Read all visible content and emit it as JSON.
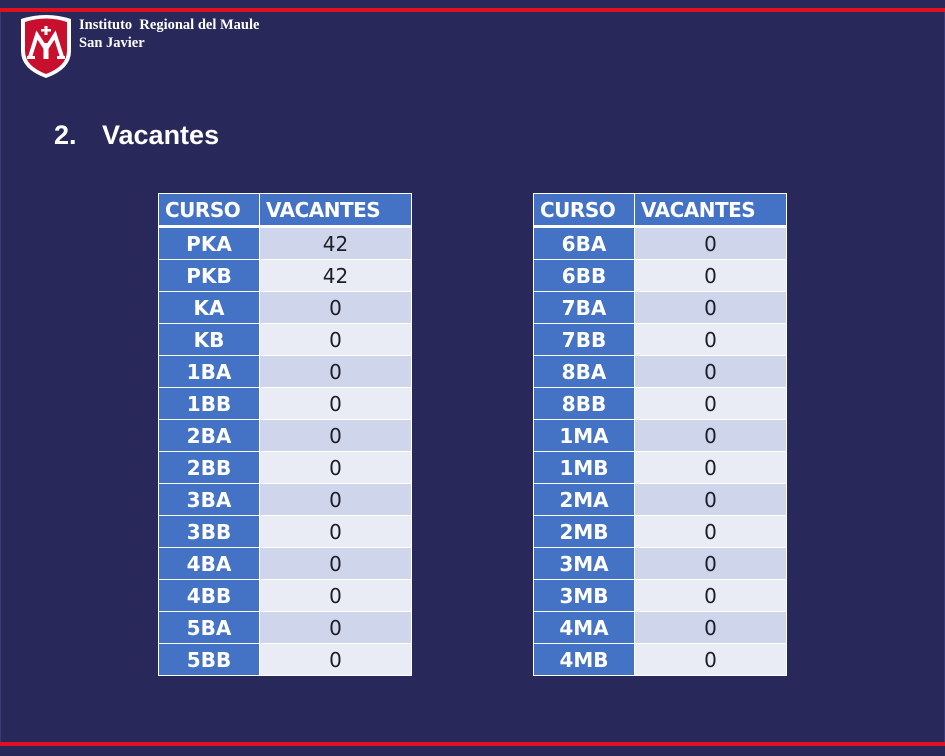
{
  "header": {
    "institution": "Instituto  Regional del Maule",
    "city": "San Javier"
  },
  "section": {
    "number": "2.",
    "title": "Vacantes"
  },
  "colors": {
    "background": "#28285a",
    "accent_red": "#e0101e",
    "header_blue": "#4472c4",
    "row_light": "#e9ebf5",
    "row_dark": "#cfd5ea"
  },
  "tables": [
    {
      "headers": [
        "CURSO",
        "VACANTES"
      ],
      "rows": [
        [
          "PKA",
          "42"
        ],
        [
          "PKB",
          "42"
        ],
        [
          "KA",
          "0"
        ],
        [
          "KB",
          "0"
        ],
        [
          "1BA",
          "0"
        ],
        [
          "1BB",
          "0"
        ],
        [
          "2BA",
          "0"
        ],
        [
          "2BB",
          "0"
        ],
        [
          "3BA",
          "0"
        ],
        [
          "3BB",
          "0"
        ],
        [
          "4BA",
          "0"
        ],
        [
          "4BB",
          "0"
        ],
        [
          "5BA",
          "0"
        ],
        [
          "5BB",
          "0"
        ]
      ]
    },
    {
      "headers": [
        "CURSO",
        "VACANTES"
      ],
      "rows": [
        [
          "6BA",
          "0"
        ],
        [
          "6BB",
          "0"
        ],
        [
          "7BA",
          "0"
        ],
        [
          "7BB",
          "0"
        ],
        [
          "8BA",
          "0"
        ],
        [
          "8BB",
          "0"
        ],
        [
          "1MA",
          "0"
        ],
        [
          "1MB",
          "0"
        ],
        [
          "2MA",
          "0"
        ],
        [
          "2MB",
          "0"
        ],
        [
          "3MA",
          "0"
        ],
        [
          "3MB",
          "0"
        ],
        [
          "4MA",
          "0"
        ],
        [
          "4MB",
          "0"
        ]
      ]
    }
  ]
}
